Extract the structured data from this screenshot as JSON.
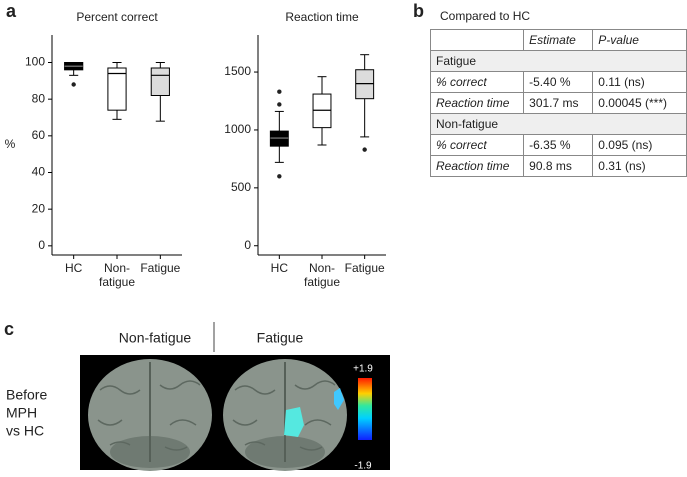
{
  "panel_labels": [
    "a",
    "b",
    "c"
  ],
  "chart_data": [
    {
      "type": "box",
      "title": "Percent correct",
      "ylabel": "%",
      "categories": [
        "HC",
        "Non-\nfatigue",
        "Fatigue"
      ],
      "boxes": [
        {
          "min": 93,
          "q1": 96,
          "median": 98,
          "q3": 100,
          "max": 100,
          "outliers": [
            88
          ],
          "color": "#000000"
        },
        {
          "min": 69,
          "q1": 74,
          "median": 94,
          "q3": 97,
          "max": 100,
          "outliers": [],
          "color": "#ffffff"
        },
        {
          "min": 68,
          "q1": 82,
          "median": 93,
          "q3": 97,
          "max": 100,
          "outliers": [],
          "color": "#dcdcdc"
        }
      ],
      "ylim": [
        -5,
        115
      ],
      "yticks": [
        0,
        20,
        40,
        60,
        80,
        100
      ]
    },
    {
      "type": "box",
      "title": "Reaction time",
      "categories": [
        "HC",
        "Non-\nfatigue",
        "Fatigue"
      ],
      "boxes": [
        {
          "min": 720,
          "q1": 860,
          "median": 930,
          "q3": 990,
          "max": 1160,
          "outliers": [
            1330,
            1220,
            600
          ],
          "color": "#000000"
        },
        {
          "min": 870,
          "q1": 1020,
          "median": 1170,
          "q3": 1310,
          "max": 1460,
          "outliers": [],
          "color": "#ffffff"
        },
        {
          "min": 940,
          "q1": 1270,
          "median": 1400,
          "q3": 1520,
          "max": 1650,
          "outliers": [
            830
          ],
          "color": "#dcdcdc"
        }
      ],
      "ylim": [
        -80,
        1820
      ],
      "yticks": [
        0,
        500,
        1000,
        1500
      ]
    }
  ],
  "table": {
    "title": "Compared to HC",
    "header": [
      "Estimate",
      "P-value"
    ],
    "groups": [
      {
        "name": "Fatigue",
        "rows": [
          [
            "% correct",
            "-5.40 %",
            "0.11 (ns)"
          ],
          [
            "Reaction time",
            "301.7 ms",
            "0.00045 (***)"
          ]
        ]
      },
      {
        "name": "Non-fatigue",
        "rows": [
          [
            "% correct",
            "-6.35 %",
            "0.095 (ns)"
          ],
          [
            "Reaction time",
            "90.8 ms",
            "0.31 (ns)"
          ]
        ]
      }
    ]
  },
  "brain": {
    "columns": [
      "Non-fatigue",
      "Fatigue"
    ],
    "row_label": [
      "Before",
      "MPH",
      "vs HC"
    ],
    "colorbar": [
      "+1.9",
      "-1.9"
    ]
  }
}
